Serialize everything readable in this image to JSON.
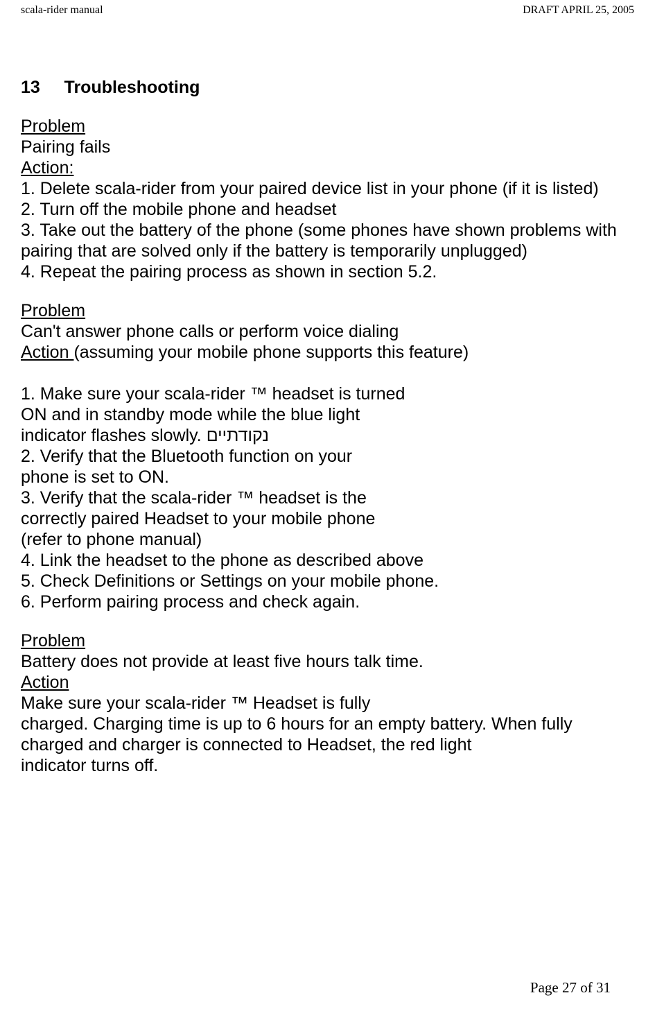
{
  "header": {
    "left": "scala-rider manual",
    "right": "DRAFT  APRIL 25, 2005"
  },
  "section": {
    "number": "13",
    "title": "Troubleshooting"
  },
  "block1": {
    "problem_label": "Problem",
    "problem_text": "Pairing fails",
    "action_label": "Action:",
    "line1": "1. Delete scala-rider from your paired device list in your phone (if it is listed)",
    "line2": "2. Turn off the mobile phone and headset",
    "line3": "3. Take out the battery of the phone (some phones have shown problems with pairing that are solved only if the battery is temporarily unplugged)",
    "line4": "4. Repeat the pairing process as shown in section 5.2."
  },
  "block2": {
    "problem_label": "Problem",
    "problem_text": "Can't answer phone calls or perform voice dialing",
    "action_label": "Action ",
    "action_paren": "(assuming your mobile phone supports this feature)",
    "line1": "1. Make sure your scala-rider ™ headset is turned",
    "line1b": "ON and in standby mode while the blue light",
    "line1c": "indicator flashes slowly. נקודתיים",
    "line2": "2. Verify that the Bluetooth function on your",
    "line2b": "phone is set to ON.",
    "line3": "3. Verify that the scala-rider ™ headset is the",
    "line3b": "correctly paired Headset to your mobile phone",
    "line3c": "(refer to phone manual)",
    "line4": "4. Link the headset to the phone as described above",
    "line5": "5. Check Definitions or Settings on your mobile phone.",
    "line6": "6. Perform pairing process and check again."
  },
  "block3": {
    "problem_label": "Problem",
    "problem_text": "Battery does not provide at least five hours talk time.",
    "action_label": "Action",
    "line1": "Make sure your scala-rider ™ Headset is fully",
    "line2": "charged. Charging time is up to 6 hours for an empty battery. When fully",
    "line3": "charged and charger is connected to Headset, the red light",
    "line4": "indicator turns off."
  },
  "footer": {
    "text": "Page 27 of 31"
  }
}
